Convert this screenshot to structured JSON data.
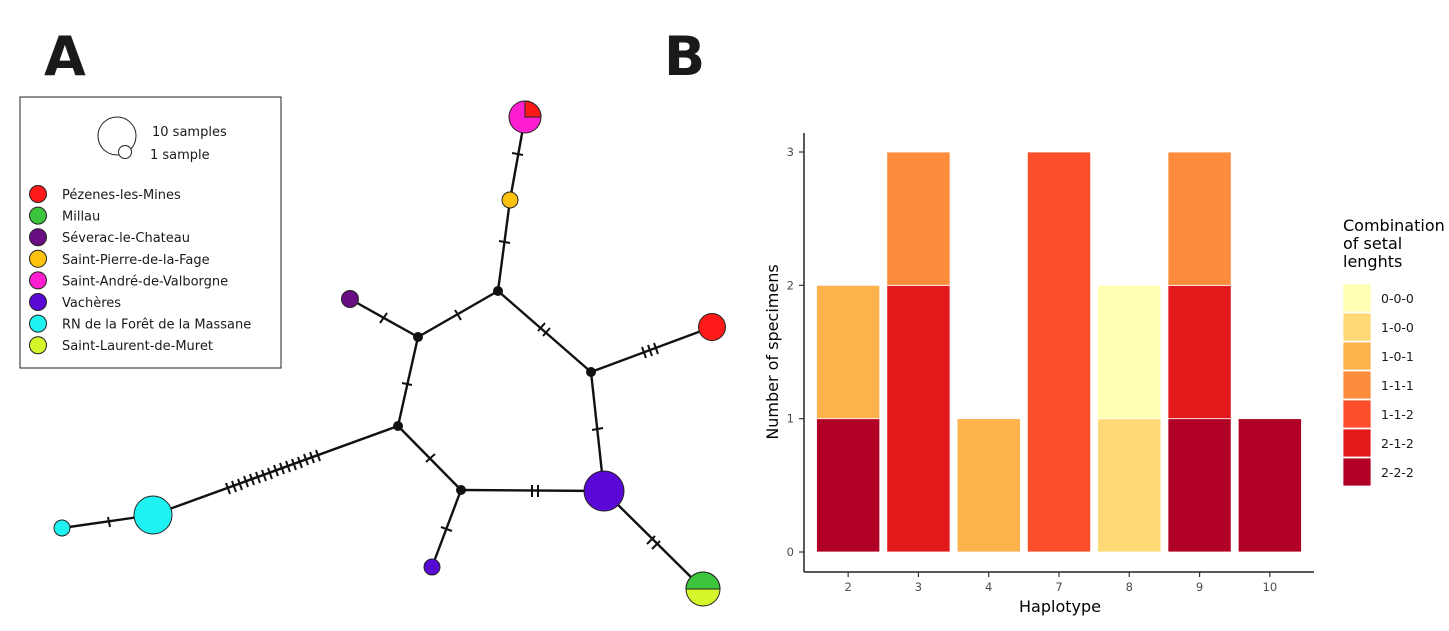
{
  "panel_a": {
    "letter": "A",
    "size_legend": {
      "large_label": "10 samples",
      "small_label": "1 sample"
    },
    "locations": [
      {
        "name": "Pézenes-les-Mines",
        "color": "#ff1a1a"
      },
      {
        "name": "Millau",
        "color": "#3cc43c"
      },
      {
        "name": "Séverac-le-Chateau",
        "color": "#6a0d83"
      },
      {
        "name": "Saint-Pierre-de-la-Fage",
        "color": "#ffc20e"
      },
      {
        "name": "Saint-André-de-Valborgne",
        "color": "#ff1fd0"
      },
      {
        "name": "Vachères",
        "color": "#5a08d6"
      },
      {
        "name": "RN de la Forêt de la Massane",
        "color": "#1ff2f2"
      },
      {
        "name": "Saint-Laurent-de-Muret",
        "color": "#d6f52a"
      }
    ]
  },
  "panel_b": {
    "letter": "B"
  },
  "chart_data": {
    "type": "bar",
    "stacked": true,
    "categories": [
      "2",
      "3",
      "4",
      "7",
      "8",
      "9",
      "10"
    ],
    "xlabel": "Haplotype",
    "ylabel": "Number of specimens",
    "ylim": [
      0,
      3
    ],
    "yticks": [
      "0",
      "1",
      "2",
      "3"
    ],
    "grid": false,
    "legend": {
      "title_lines": [
        "Combination",
        "of setal",
        "lenghts"
      ],
      "placement": "right"
    },
    "series": [
      {
        "name": "2-2-2",
        "color": "#b10026",
        "values": [
          1,
          0,
          0,
          0,
          0,
          1,
          1
        ]
      },
      {
        "name": "2-1-2",
        "color": "#e31a1c",
        "values": [
          0,
          2,
          0,
          0,
          0,
          1,
          0
        ]
      },
      {
        "name": "1-1-2",
        "color": "#fc4e2a",
        "values": [
          0,
          0,
          0,
          3,
          0,
          0,
          0
        ]
      },
      {
        "name": "1-1-1",
        "color": "#fd8d3c",
        "values": [
          0,
          1,
          0,
          0,
          0,
          1,
          0
        ]
      },
      {
        "name": "1-0-1",
        "color": "#feb24c",
        "values": [
          1,
          0,
          1,
          0,
          0,
          0,
          0
        ]
      },
      {
        "name": "1-0-0",
        "color": "#fed976",
        "values": [
          0,
          0,
          0,
          0,
          1,
          0,
          0
        ]
      },
      {
        "name": "0-0-0",
        "color": "#ffffb2",
        "values": [
          0,
          0,
          0,
          0,
          1,
          0,
          0
        ]
      }
    ],
    "legend_order": [
      "0-0-0",
      "1-0-0",
      "1-0-1",
      "1-1-1",
      "1-1-2",
      "2-1-2",
      "2-2-2"
    ]
  }
}
